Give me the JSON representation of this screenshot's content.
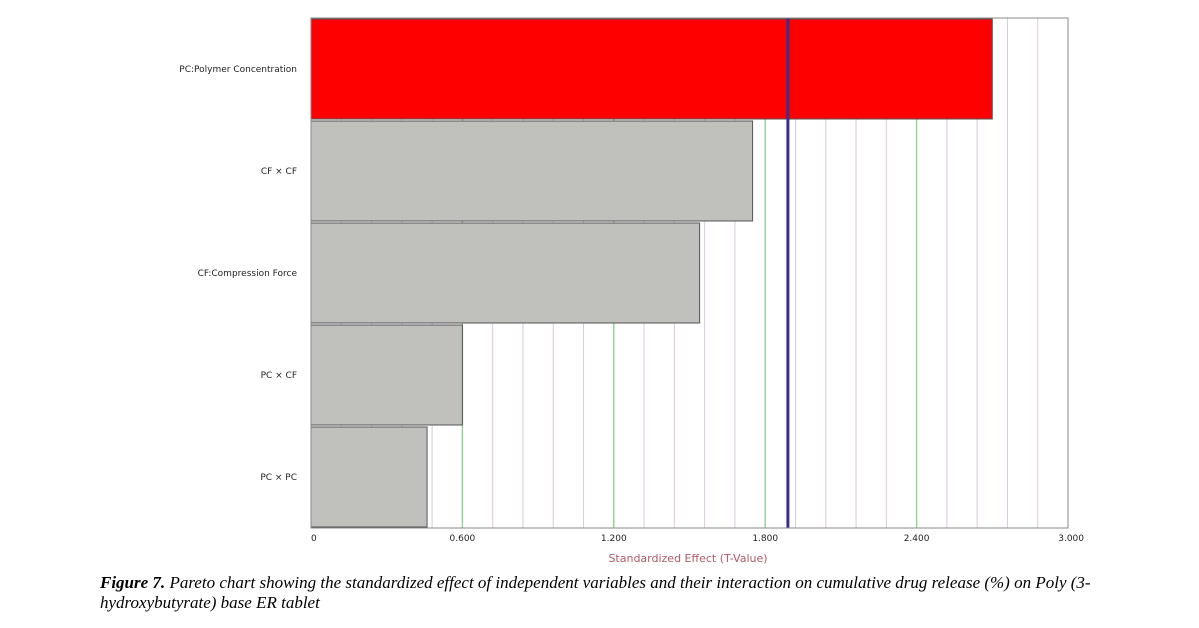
{
  "chart_data": {
    "type": "bar",
    "orientation": "horizontal",
    "categories": [
      "PC:Polymer Concentration",
      "CF × CF",
      "CF:Compression Force",
      "PC × CF",
      "PC × PC"
    ],
    "values": [
      2.7,
      1.75,
      1.54,
      0.6,
      0.46
    ],
    "xlabel": "Standardized Effect (T-Value)",
    "ylabel": "",
    "xlim": [
      0,
      3.0
    ],
    "tick_labels": [
      "0",
      "0.600",
      "1.200",
      "1.800",
      "2.400",
      "3.000"
    ],
    "reference_line": 1.89,
    "grid": true,
    "colors": {
      "significant_bar": "#ff0000",
      "bar": "#c0c0bc",
      "reference_line": "#3b2d8c",
      "major_grid": "#9ad19a",
      "minor_grid": "#dcc8dc",
      "axis_title": "#b05a6a"
    }
  },
  "caption": {
    "label": "Figure 7.",
    "text": " Pareto chart showing the standardized effect of independent variables and their interaction on cumulative drug release (%) on Poly (3-hydroxybutyrate) base ER tablet"
  }
}
